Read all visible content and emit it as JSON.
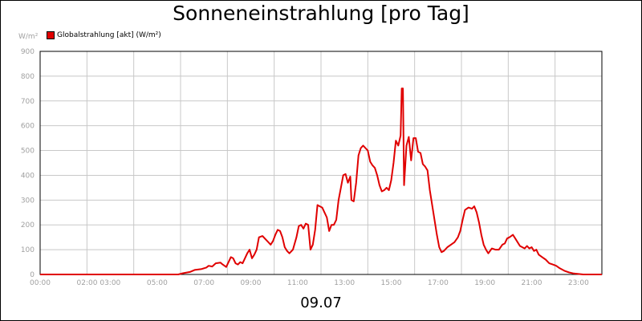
{
  "title": "Sonneneinstrahlung [pro Tag]",
  "y_unit": "W/m²",
  "date_label": "09.07",
  "colors": {
    "series": "#e00000",
    "grid": "#c8c8c8",
    "axis": "#000000",
    "tick_text": "#a0a0a0"
  },
  "chart_data": {
    "type": "line",
    "title": "Sonneneinstrahlung [pro Tag]",
    "xlabel": "09.07",
    "ylabel": "W/m²",
    "ylim": [
      0,
      900
    ],
    "xlim": [
      0,
      24
    ],
    "grid": true,
    "legend_placement": "top-left",
    "y_ticks": [
      "0",
      "100",
      "200",
      "300",
      "400",
      "500",
      "600",
      "700",
      "800",
      "900"
    ],
    "x_ticks": [
      {
        "hour": 0,
        "label": "00:00"
      },
      {
        "hour": 2.5,
        "label": "02:00 03:00"
      },
      {
        "hour": 5,
        "label": "05:00"
      },
      {
        "hour": 7,
        "label": "07:00"
      },
      {
        "hour": 9,
        "label": "09:00"
      },
      {
        "hour": 11,
        "label": "11:00"
      },
      {
        "hour": 13,
        "label": "13:00"
      },
      {
        "hour": 15,
        "label": "15:00"
      },
      {
        "hour": 17,
        "label": "17:00"
      },
      {
        "hour": 19,
        "label": "19:00"
      },
      {
        "hour": 21,
        "label": "21:00"
      },
      {
        "hour": 23,
        "label": "23:00"
      }
    ],
    "series": [
      {
        "name": "Globalstrahlung [akt] (W/m²)",
        "points": [
          [
            0,
            0
          ],
          [
            5.9,
            0
          ],
          [
            6.1,
            5
          ],
          [
            6.4,
            10
          ],
          [
            6.6,
            18
          ],
          [
            6.9,
            22
          ],
          [
            7.1,
            28
          ],
          [
            7.2,
            35
          ],
          [
            7.35,
            32
          ],
          [
            7.5,
            45
          ],
          [
            7.7,
            48
          ],
          [
            7.8,
            40
          ],
          [
            7.95,
            30
          ],
          [
            8.05,
            50
          ],
          [
            8.15,
            70
          ],
          [
            8.25,
            65
          ],
          [
            8.35,
            45
          ],
          [
            8.45,
            40
          ],
          [
            8.55,
            50
          ],
          [
            8.65,
            45
          ],
          [
            8.75,
            65
          ],
          [
            8.85,
            85
          ],
          [
            8.95,
            100
          ],
          [
            9.05,
            65
          ],
          [
            9.15,
            80
          ],
          [
            9.25,
            100
          ],
          [
            9.35,
            150
          ],
          [
            9.5,
            155
          ],
          [
            9.6,
            145
          ],
          [
            9.75,
            130
          ],
          [
            9.85,
            120
          ],
          [
            9.95,
            135
          ],
          [
            10.05,
            160
          ],
          [
            10.15,
            180
          ],
          [
            10.25,
            175
          ],
          [
            10.35,
            150
          ],
          [
            10.45,
            110
          ],
          [
            10.55,
            95
          ],
          [
            10.65,
            85
          ],
          [
            10.8,
            100
          ],
          [
            10.95,
            150
          ],
          [
            11.05,
            195
          ],
          [
            11.15,
            200
          ],
          [
            11.25,
            185
          ],
          [
            11.35,
            205
          ],
          [
            11.45,
            200
          ],
          [
            11.55,
            100
          ],
          [
            11.65,
            120
          ],
          [
            11.75,
            180
          ],
          [
            11.85,
            280
          ],
          [
            11.95,
            275
          ],
          [
            12.05,
            270
          ],
          [
            12.15,
            250
          ],
          [
            12.25,
            230
          ],
          [
            12.35,
            175
          ],
          [
            12.45,
            200
          ],
          [
            12.55,
            200
          ],
          [
            12.65,
            220
          ],
          [
            12.75,
            300
          ],
          [
            12.85,
            350
          ],
          [
            12.95,
            400
          ],
          [
            13.05,
            405
          ],
          [
            13.15,
            370
          ],
          [
            13.25,
            395
          ],
          [
            13.3,
            300
          ],
          [
            13.4,
            295
          ],
          [
            13.5,
            370
          ],
          [
            13.6,
            480
          ],
          [
            13.7,
            510
          ],
          [
            13.8,
            520
          ],
          [
            13.9,
            510
          ],
          [
            14.0,
            500
          ],
          [
            14.1,
            455
          ],
          [
            14.2,
            440
          ],
          [
            14.3,
            430
          ],
          [
            14.4,
            400
          ],
          [
            14.5,
            360
          ],
          [
            14.6,
            335
          ],
          [
            14.7,
            340
          ],
          [
            14.8,
            350
          ],
          [
            14.9,
            340
          ],
          [
            15.0,
            380
          ],
          [
            15.1,
            450
          ],
          [
            15.2,
            540
          ],
          [
            15.3,
            520
          ],
          [
            15.4,
            560
          ],
          [
            15.45,
            750
          ],
          [
            15.5,
            750
          ],
          [
            15.55,
            360
          ],
          [
            15.65,
            520
          ],
          [
            15.75,
            555
          ],
          [
            15.85,
            460
          ],
          [
            15.95,
            550
          ],
          [
            16.05,
            550
          ],
          [
            16.15,
            495
          ],
          [
            16.25,
            490
          ],
          [
            16.35,
            445
          ],
          [
            16.45,
            435
          ],
          [
            16.55,
            420
          ],
          [
            16.65,
            340
          ],
          [
            16.8,
            250
          ],
          [
            16.95,
            160
          ],
          [
            17.05,
            110
          ],
          [
            17.15,
            90
          ],
          [
            17.25,
            95
          ],
          [
            17.4,
            110
          ],
          [
            17.55,
            120
          ],
          [
            17.7,
            130
          ],
          [
            17.85,
            150
          ],
          [
            17.95,
            175
          ],
          [
            18.05,
            220
          ],
          [
            18.15,
            260
          ],
          [
            18.3,
            270
          ],
          [
            18.45,
            265
          ],
          [
            18.55,
            275
          ],
          [
            18.65,
            250
          ],
          [
            18.75,
            210
          ],
          [
            18.85,
            160
          ],
          [
            18.95,
            120
          ],
          [
            19.05,
            100
          ],
          [
            19.15,
            85
          ],
          [
            19.3,
            105
          ],
          [
            19.45,
            100
          ],
          [
            19.6,
            100
          ],
          [
            19.75,
            120
          ],
          [
            19.85,
            125
          ],
          [
            19.95,
            145
          ],
          [
            20.05,
            150
          ],
          [
            20.2,
            160
          ],
          [
            20.3,
            145
          ],
          [
            20.4,
            130
          ],
          [
            20.5,
            115
          ],
          [
            20.6,
            110
          ],
          [
            20.7,
            105
          ],
          [
            20.8,
            115
          ],
          [
            20.9,
            105
          ],
          [
            21.0,
            110
          ],
          [
            21.1,
            95
          ],
          [
            21.2,
            100
          ],
          [
            21.3,
            80
          ],
          [
            21.45,
            70
          ],
          [
            21.6,
            60
          ],
          [
            21.75,
            45
          ],
          [
            21.9,
            40
          ],
          [
            22.05,
            35
          ],
          [
            22.2,
            25
          ],
          [
            22.4,
            15
          ],
          [
            22.6,
            8
          ],
          [
            22.8,
            4
          ],
          [
            23.0,
            2
          ],
          [
            23.2,
            0
          ],
          [
            24,
            0
          ]
        ]
      }
    ]
  }
}
